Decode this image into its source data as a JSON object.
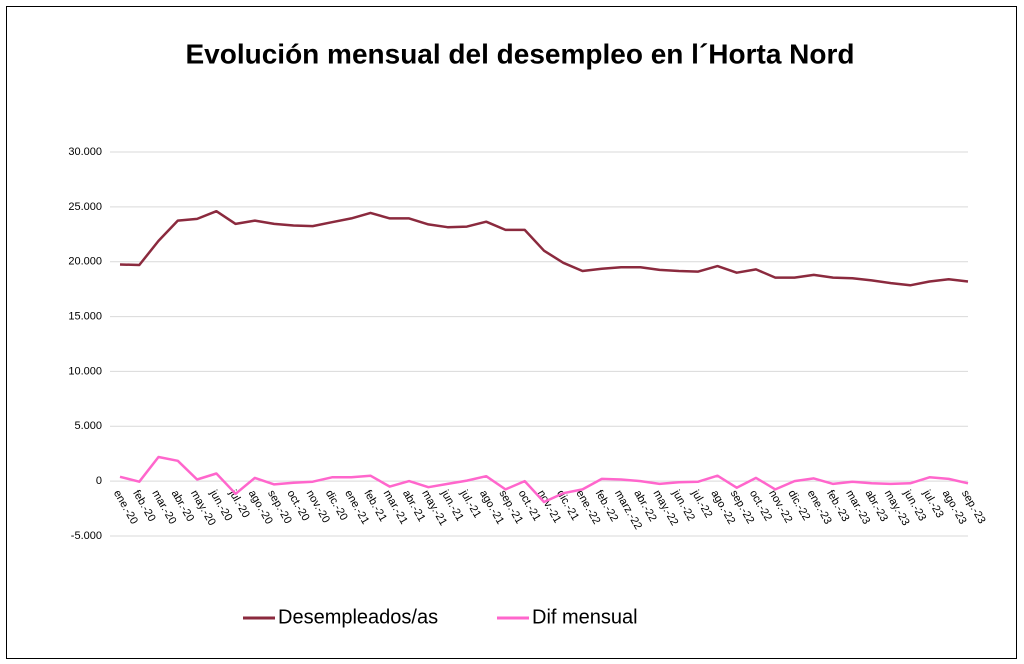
{
  "chart_data": {
    "type": "line",
    "title": "Evolución mensual del desempleo en l´Horta Nord",
    "categories": [
      "ene.-20",
      "feb.-20",
      "mar.-20",
      "abr.-20",
      "may.-20",
      "jun.-20",
      "jul.-20",
      "ago.-20",
      "sep.-20",
      "oct.-20",
      "nov.-20",
      "dic.-20",
      "ene.-21",
      "feb.-21",
      "mar.-21",
      "abr.-21",
      "may.-21",
      "jun.-21",
      "jul.-21",
      "ago.-21",
      "sep.-21",
      "oct.-21",
      "nov.-21",
      "dic.-21",
      "ene.-22",
      "feb.-22",
      "marz.-22",
      "abr.-22",
      "may.-22",
      "jun.-22",
      "jul.-22",
      "ago.-22",
      "sep.-22",
      "oct.-22",
      "nov.-22",
      "dic.-22",
      "ene.-23",
      "feb.-23",
      "mar.-23",
      "abr.-23",
      "may.-23",
      "jun.-23",
      "jul.-23",
      "ago.-23",
      "sep.-23"
    ],
    "series": [
      {
        "name": "Desempleados/as",
        "color": "#8b2a3e",
        "values": [
          19750,
          19700,
          21900,
          23750,
          23900,
          24600,
          23450,
          23750,
          23450,
          23300,
          23250,
          23600,
          23950,
          24450,
          23950,
          23950,
          23400,
          23150,
          23200,
          23650,
          22900,
          22900,
          21000,
          19900,
          19150,
          19350,
          19500,
          19500,
          19250,
          19150,
          19100,
          19600,
          19000,
          19300,
          18550,
          18550,
          18800,
          18550,
          18500,
          18300,
          18050,
          17850,
          18200,
          18400,
          18200
        ]
      },
      {
        "name": "Dif mensual",
        "color": "#ff66cc",
        "values": [
          400,
          -50,
          2200,
          1850,
          150,
          700,
          -1150,
          300,
          -300,
          -150,
          -50,
          350,
          350,
          500,
          -500,
          0,
          -550,
          -250,
          50,
          450,
          -750,
          0,
          -1900,
          -1100,
          -750,
          200,
          150,
          0,
          -250,
          -100,
          -50,
          500,
          -600,
          300,
          -750,
          0,
          250,
          -250,
          -50,
          -200,
          -250,
          -200,
          350,
          200,
          -200
        ]
      }
    ],
    "ylim": [
      -5000,
      30000
    ],
    "yticks": [
      {
        "value": -5000,
        "label": "-5.000"
      },
      0,
      {
        "value": 5000,
        "label": "5.000"
      },
      {
        "value": 10000,
        "label": "10.000"
      },
      {
        "value": 15000,
        "label": "15.000"
      },
      {
        "value": 20000,
        "label": "20.000"
      },
      {
        "value": 25000,
        "label": "25.000"
      },
      {
        "value": 30000,
        "label": "30.000"
      }
    ],
    "grid": true,
    "legend": "bottom"
  }
}
